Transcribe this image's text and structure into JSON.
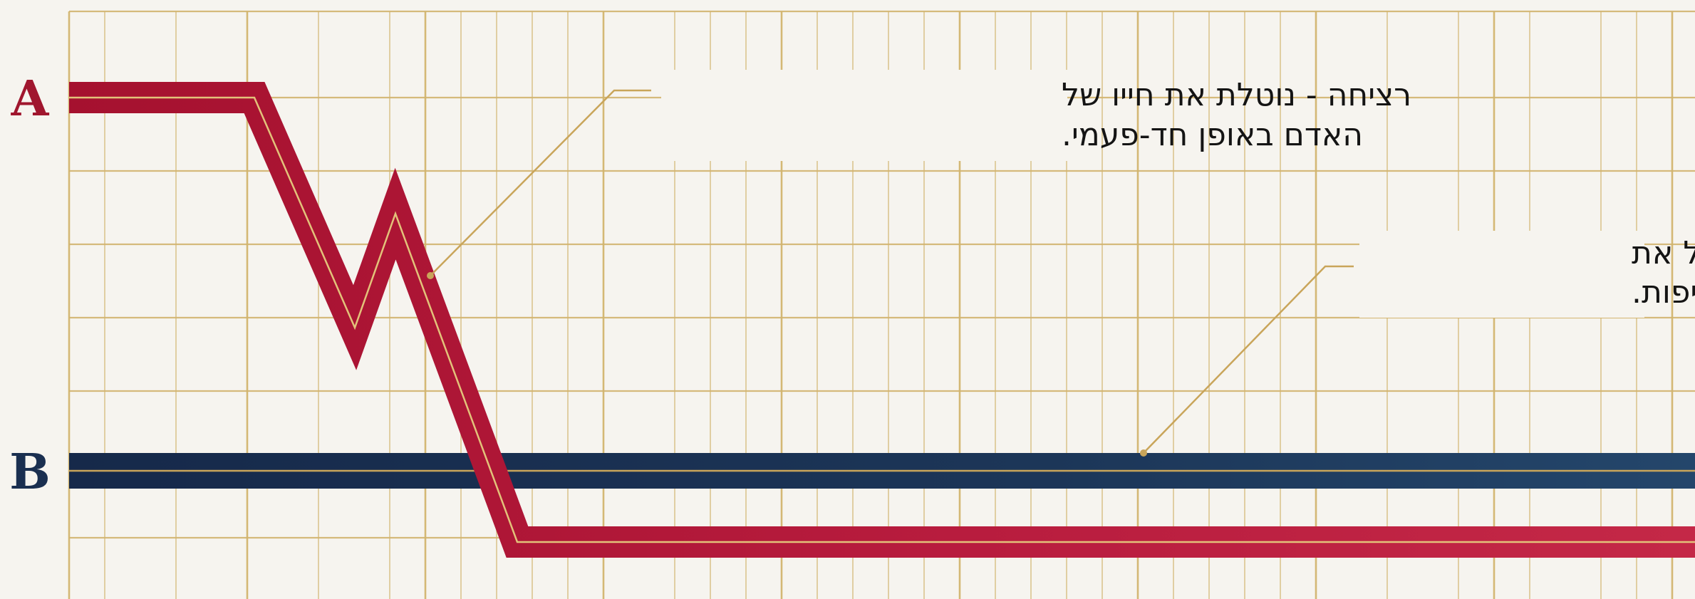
{
  "labels": {
    "a": "A",
    "b": "B"
  },
  "callouts": {
    "murder": {
      "line1": "רציחה - נוטלת את חייו של",
      "line2": "האדם באופן חד-פעמי."
    },
    "slavery": {
      "line1": "שעבוד - שולל את",
      "line2": "החיים ברציפות."
    }
  },
  "colors": {
    "background": "#f6f4ef",
    "grid": "#d2b46e",
    "murder_line": "#b3173a",
    "slavery_line": "#1b3354",
    "leader": "#c9a55a",
    "label": "#1a2f50",
    "label_a": "#a0162e"
  }
}
